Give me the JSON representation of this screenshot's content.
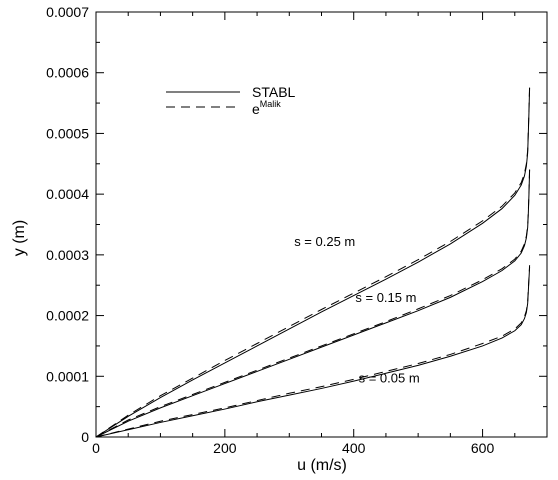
{
  "chart_data": {
    "type": "line",
    "xlabel": "u (m/s)",
    "ylabel": "y (m)",
    "xlim": [
      0,
      700
    ],
    "ylim": [
      0,
      0.0007
    ],
    "xticks": [
      0,
      200,
      400,
      600
    ],
    "xtick_labels": [
      "0",
      "200",
      "400",
      "600"
    ],
    "yticks": [
      0,
      0.0001,
      0.0002,
      0.0003,
      0.0004,
      0.0005,
      0.0006,
      0.0007
    ],
    "ytick_labels": [
      "0",
      "0.0001",
      "0.0002",
      "0.0003",
      "0.0004",
      "0.0005",
      "0.0006",
      "0.0007"
    ],
    "grid": false,
    "legend_position": "top-left",
    "legend": [
      {
        "label": "STABL",
        "style": "solid"
      },
      {
        "label": "e",
        "superscript": "Malik",
        "style": "dashed"
      }
    ],
    "annotations": [
      {
        "text": "s = 0.25 m",
        "x": 355,
        "y": 0.000315
      },
      {
        "text": "s = 0.15 m",
        "x": 450,
        "y": 0.000222
      },
      {
        "text": "s = 0.05 m",
        "x": 455,
        "y": 9e-05
      }
    ],
    "series": [
      {
        "style": "solid",
        "curve": "s = 0.05 m",
        "x": [
          0,
          50,
          100,
          150,
          200,
          250,
          300,
          350,
          400,
          450,
          500,
          550,
          600,
          630,
          650,
          660,
          665,
          668,
          670,
          671,
          672,
          673
        ],
        "y": [
          0,
          1.2e-05,
          2.4e-05,
          3.5e-05,
          4.6e-05,
          5.8e-05,
          6.9e-05,
          8e-05,
          9.2e-05,
          0.000105,
          0.000118,
          0.000133,
          0.00015,
          0.000163,
          0.000175,
          0.000185,
          0.000195,
          0.000205,
          0.00022,
          0.00024,
          0.00026,
          0.00028
        ]
      },
      {
        "style": "dashed",
        "curve": "s = 0.05 m",
        "x": [
          0,
          50,
          100,
          150,
          200,
          250,
          300,
          350,
          400,
          450,
          500,
          550,
          600,
          630,
          650,
          660,
          665,
          668,
          670,
          671,
          672,
          673
        ],
        "y": [
          0,
          1.3e-05,
          2.6e-05,
          3.7e-05,
          4.8e-05,
          6e-05,
          7.2e-05,
          8.3e-05,
          9.5e-05,
          0.000108,
          0.000121,
          0.000136,
          0.000154,
          0.000166,
          0.000178,
          0.000188,
          0.000198,
          0.000208,
          0.000223,
          0.000243,
          0.000263,
          0.000283
        ]
      },
      {
        "style": "solid",
        "curve": "s = 0.15 m",
        "x": [
          0,
          50,
          100,
          150,
          200,
          250,
          300,
          350,
          400,
          450,
          500,
          550,
          600,
          630,
          650,
          660,
          665,
          668,
          670,
          671,
          672,
          673
        ],
        "y": [
          0,
          2.6e-05,
          4.8e-05,
          6.8e-05,
          8.8e-05,
          0.000108,
          0.000128,
          0.000148,
          0.000168,
          0.000188,
          0.000208,
          0.00023,
          0.000256,
          0.000274,
          0.00029,
          0.000303,
          0.000315,
          0.000328,
          0.000345,
          0.000368,
          0.0004,
          0.00044
        ]
      },
      {
        "style": "dashed",
        "curve": "s = 0.15 m",
        "x": [
          0,
          50,
          100,
          150,
          200,
          250,
          300,
          350,
          400,
          450,
          500,
          550,
          600,
          630,
          650,
          660,
          665,
          668,
          670,
          671,
          672,
          673
        ],
        "y": [
          0,
          2.8e-05,
          5e-05,
          7e-05,
          9e-05,
          0.00011,
          0.00013,
          0.00015,
          0.00017,
          0.00019,
          0.000211,
          0.000233,
          0.000259,
          0.000277,
          0.000293,
          0.000306,
          0.000318,
          0.000331,
          0.000348,
          0.000371,
          0.000403,
          0.000443
        ]
      },
      {
        "style": "solid",
        "curve": "s = 0.25 m",
        "x": [
          0,
          50,
          100,
          150,
          200,
          250,
          300,
          350,
          400,
          450,
          500,
          550,
          600,
          630,
          650,
          660,
          665,
          668,
          670,
          671,
          672,
          673
        ],
        "y": [
          0,
          3.4e-05,
          6.5e-05,
          9.4e-05,
          0.000122,
          0.00015,
          0.000178,
          0.000206,
          0.000233,
          0.00026,
          0.000288,
          0.000318,
          0.000352,
          0.000376,
          0.000398,
          0.000415,
          0.00043,
          0.000446,
          0.000468,
          0.0005,
          0.000535,
          0.000575
        ]
      },
      {
        "style": "dashed",
        "curve": "s = 0.25 m",
        "x": [
          0,
          50,
          100,
          150,
          200,
          250,
          300,
          350,
          400,
          450,
          500,
          550,
          600,
          630,
          650,
          660,
          665,
          668,
          670,
          671,
          672,
          673
        ],
        "y": [
          0,
          3.6e-05,
          6.8e-05,
          9.7e-05,
          0.000126,
          0.000154,
          0.000182,
          0.00021,
          0.000237,
          0.000264,
          0.000292,
          0.000322,
          0.000356,
          0.00038,
          0.000402,
          0.000419,
          0.000434,
          0.00045,
          0.000472,
          0.000504,
          0.000539,
          0.000579
        ]
      }
    ]
  }
}
